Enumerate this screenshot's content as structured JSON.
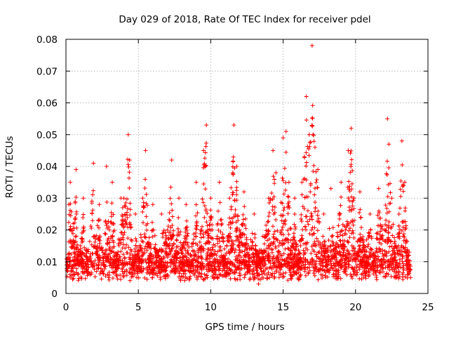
{
  "chart_data": {
    "type": "scatter",
    "title": "Day 029 of 2018, Rate Of TEC Index for receiver pdel",
    "xlabel": "GPS time / hours",
    "ylabel": "ROTI / TECUs",
    "xlim": [
      0,
      25
    ],
    "ylim": [
      0,
      0.08
    ],
    "xticks": [
      0,
      5,
      10,
      15,
      20,
      25
    ],
    "xtick_labels": [
      "0",
      "5",
      "10",
      "15",
      "20",
      "25"
    ],
    "yticks": [
      0,
      0.01,
      0.02,
      0.03,
      0.04,
      0.05,
      0.06,
      0.07,
      0.08
    ],
    "ytick_labels": [
      "0",
      "0.01",
      "0.02",
      "0.03",
      "0.04",
      "0.05",
      "0.06",
      "0.07",
      "0.08"
    ],
    "grid": true,
    "marker": "plus",
    "series": [
      {
        "name": "ROTI",
        "color": "#ff0000",
        "x": [
          0.05,
          0.2,
          0.3,
          0.5,
          0.7,
          0.8,
          1.0,
          1.2,
          1.5,
          1.9,
          2.0,
          2.3,
          2.6,
          2.8,
          3.0,
          3.2,
          3.5,
          3.8,
          4.0,
          4.3,
          4.4,
          4.6,
          4.8,
          5.0,
          5.3,
          5.5,
          5.8,
          6.0,
          6.3,
          6.6,
          7.0,
          7.3,
          7.5,
          7.8,
          8.0,
          8.3,
          8.6,
          9.0,
          9.3,
          9.5,
          9.7,
          9.8,
          10.0,
          10.3,
          10.6,
          11.0,
          11.3,
          11.6,
          11.8,
          12.0,
          12.3,
          12.6,
          13.0,
          13.3,
          13.6,
          14.0,
          14.3,
          14.5,
          14.7,
          15.0,
          15.2,
          15.4,
          15.6,
          15.8,
          16.0,
          16.3,
          16.6,
          16.8,
          17.0,
          17.2,
          17.4,
          17.6,
          17.8,
          18.0,
          18.3,
          18.6,
          19.0,
          19.3,
          19.5,
          19.7,
          19.9,
          20.0,
          20.3,
          20.6,
          21.0,
          21.3,
          21.6,
          22.0,
          22.2,
          22.3,
          22.5,
          22.8,
          23.0,
          23.2,
          23.4,
          23.6,
          23.8
        ],
        "y": [
          0.009,
          0.028,
          0.035,
          0.022,
          0.039,
          0.012,
          0.015,
          0.03,
          0.01,
          0.041,
          0.018,
          0.028,
          0.011,
          0.04,
          0.02,
          0.035,
          0.009,
          0.03,
          0.03,
          0.05,
          0.042,
          0.012,
          0.025,
          0.01,
          0.03,
          0.045,
          0.015,
          0.028,
          0.012,
          0.025,
          0.02,
          0.042,
          0.01,
          0.03,
          0.015,
          0.028,
          0.012,
          0.035,
          0.02,
          0.045,
          0.053,
          0.02,
          0.03,
          0.015,
          0.035,
          0.012,
          0.03,
          0.053,
          0.04,
          0.02,
          0.032,
          0.015,
          0.025,
          0.003,
          0.018,
          0.03,
          0.045,
          0.038,
          0.015,
          0.049,
          0.051,
          0.035,
          0.015,
          0.03,
          0.012,
          0.035,
          0.062,
          0.05,
          0.078,
          0.046,
          0.039,
          0.015,
          0.025,
          0.01,
          0.033,
          0.015,
          0.035,
          0.02,
          0.045,
          0.052,
          0.03,
          0.01,
          0.032,
          0.015,
          0.025,
          0.012,
          0.033,
          0.02,
          0.055,
          0.047,
          0.03,
          0.015,
          0.025,
          0.048,
          0.035,
          0.012,
          0.005
        ]
      }
    ]
  }
}
